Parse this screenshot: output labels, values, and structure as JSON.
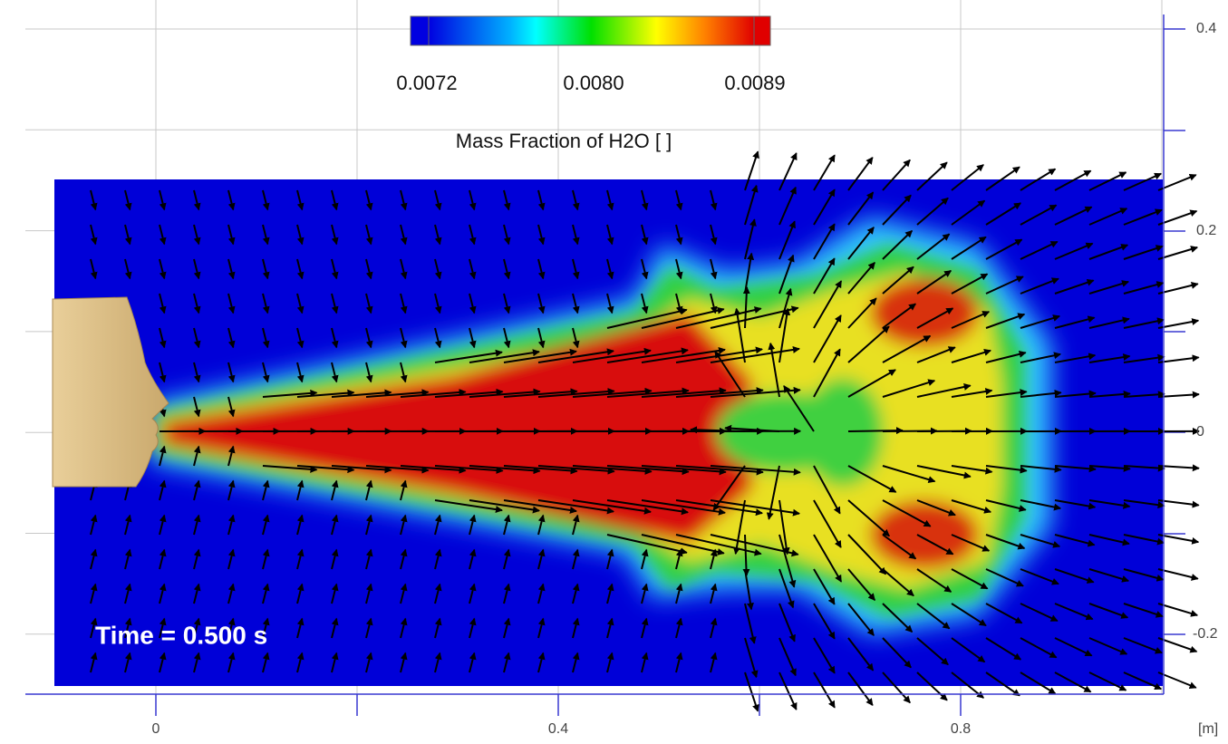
{
  "colorbar": {
    "ticks": [
      "0.0072",
      "0.0080",
      "0.0089"
    ],
    "label": "Mass Fraction of H2O [ ]"
  },
  "axes": {
    "x_ticks": [
      "0",
      "0.4",
      "0.8"
    ],
    "x_unit": "[m]",
    "y_ticks": [
      "0.4",
      "0.2",
      "0",
      "-0.2"
    ]
  },
  "annotation": "Time = 0.500 s"
}
